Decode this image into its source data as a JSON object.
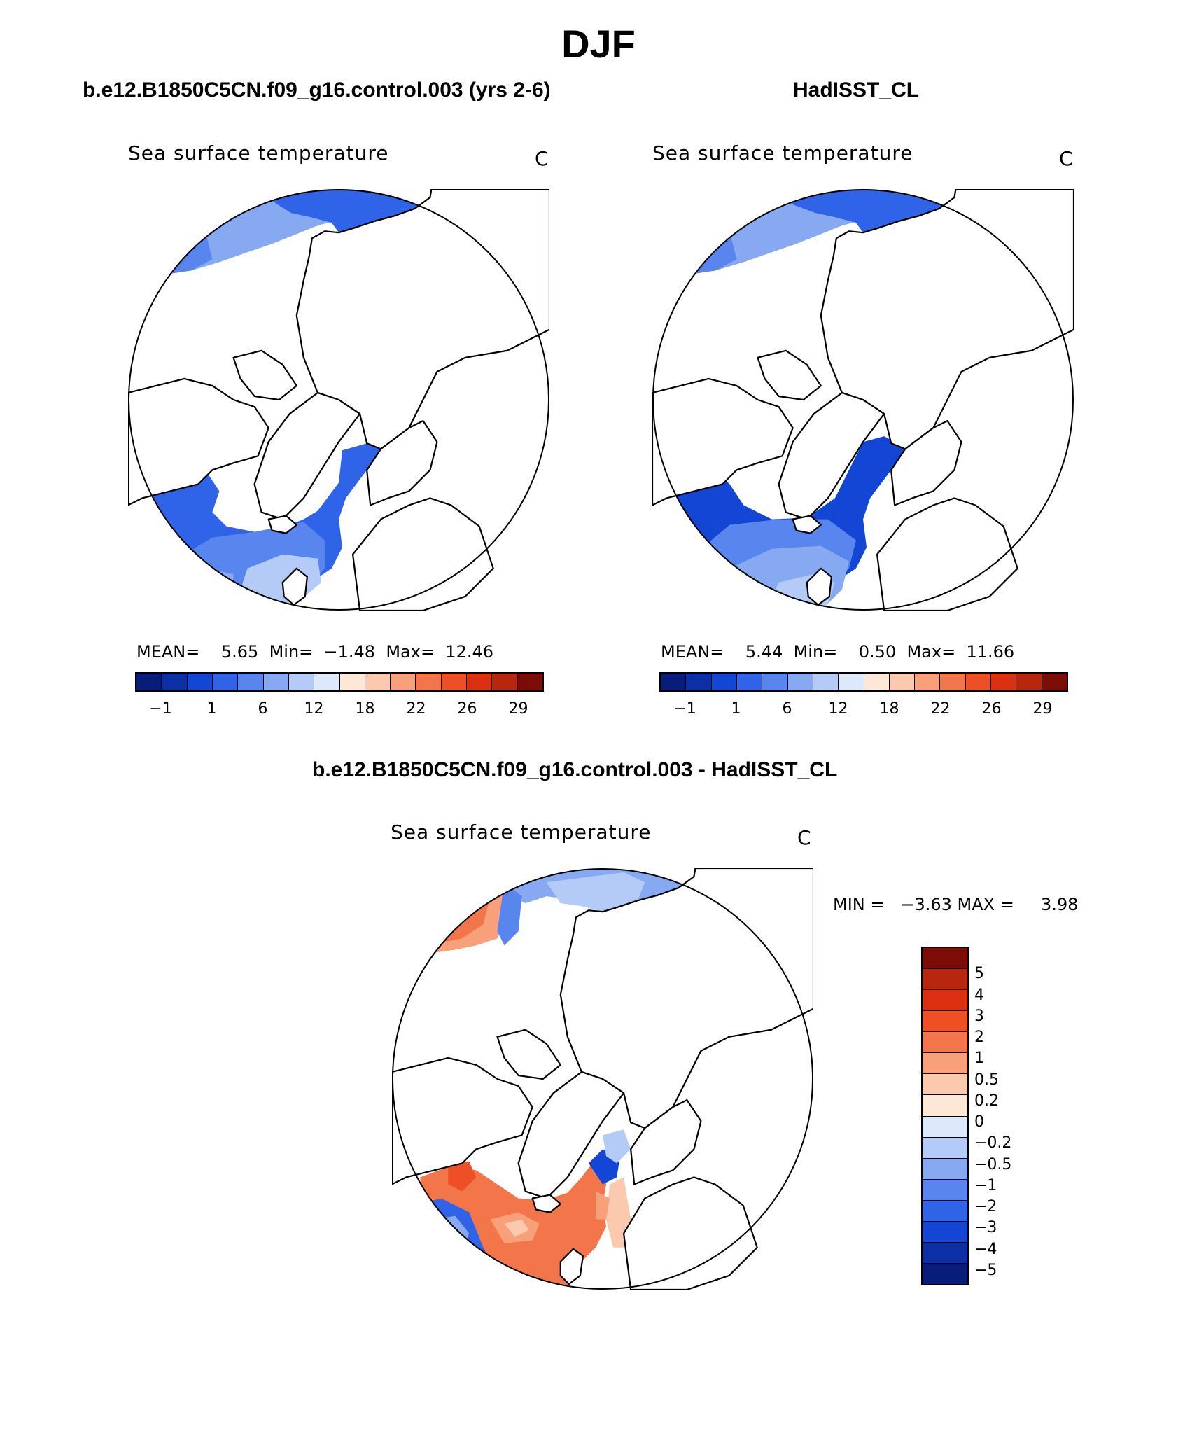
{
  "title": "DJF",
  "panels": [
    {
      "title": "b.e12.B1850C5CN.f09_g16.control.003 (yrs 2-6)",
      "variable": "Sea surface temperature",
      "units": "C",
      "stats": "MEAN=    5.65  Min=  −1.48  Max=  12.46",
      "colorbar_ticks": [
        "−1",
        "1",
        "6",
        "12",
        "18",
        "22",
        "26",
        "29"
      ]
    },
    {
      "title": "HadISST_CL",
      "variable": "Sea surface temperature",
      "units": "C",
      "stats": "MEAN=    5.44  Min=    0.50  Max=  11.66",
      "colorbar_ticks": [
        "−1",
        "1",
        "6",
        "12",
        "18",
        "22",
        "26",
        "29"
      ]
    }
  ],
  "diff_panel": {
    "title": "b.e12.B1850C5CN.f09_g16.control.003 - HadISST_CL",
    "variable": "Sea surface temperature",
    "units": "C",
    "stats": "MIN =   −3.63 MAX =     3.98",
    "colorbar_ticks": [
      "5",
      "4",
      "3",
      "2",
      "1",
      "0.5",
      "0.2",
      "0",
      "−0.2",
      "−0.5",
      "−1",
      "−2",
      "−3",
      "−4",
      "−5"
    ]
  },
  "colors": {
    "abs_scale": [
      "#081d7a",
      "#0d2fa6",
      "#1446d6",
      "#2f63e8",
      "#5886ee",
      "#86a9f2",
      "#b4cbf7",
      "#dde9fb",
      "#fde8d8",
      "#fbc9ae",
      "#f8a079",
      "#f3764a",
      "#ee4f24",
      "#db3010",
      "#b8260d",
      "#7d0b06"
    ],
    "diff_scale": [
      "#7d0b06",
      "#b8260d",
      "#db3010",
      "#ee4f24",
      "#f3764a",
      "#f8a079",
      "#fbc9ae",
      "#fde8d8",
      "#dde9fb",
      "#b4cbf7",
      "#86a9f2",
      "#5886ee",
      "#2f63e8",
      "#1446d6",
      "#0d2fa6",
      "#081d7a"
    ]
  }
}
